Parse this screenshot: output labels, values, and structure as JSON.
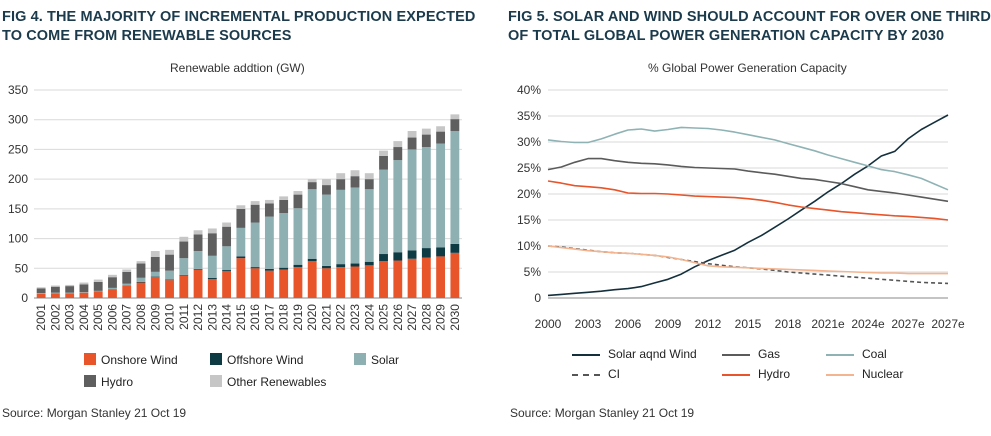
{
  "fig4": {
    "title_line1": "FIG 4. THE MAJORITY OF INCREMENTAL PRODUCTION EXPECTED",
    "title_line2": "TO COME FROM RENEWABLE SOURCES",
    "source": "Source: Morgan Stanley 21 Oct 19"
  },
  "fig5": {
    "title_line1": "FIG 5. SOLAR AND WIND SHOULD ACCOUNT FOR OVER ONE THIRD",
    "title_line2": "OF TOTAL GLOBAL POWER GENERATION CAPACITY BY 2030",
    "source": "Source: Morgan Stanley 21 Oct 19"
  },
  "chart_data": [
    {
      "type": "bar",
      "stacked": true,
      "title": "",
      "subtitle": "Renewable addtion (GW)",
      "xlabel": "",
      "ylabel": "",
      "ylim": [
        0,
        350
      ],
      "yticks": [
        0,
        50,
        100,
        150,
        200,
        250,
        300,
        350
      ],
      "grid": true,
      "legend_position": "bottom",
      "categories": [
        "2001",
        "2002",
        "2003",
        "2004",
        "2005",
        "2006",
        "2007",
        "2008",
        "2009",
        "2010",
        "2011",
        "2012",
        "2013",
        "2014",
        "2015",
        "2016",
        "2017",
        "2018",
        "2019",
        "2020",
        "2021",
        "2022",
        "2023",
        "2024",
        "2025",
        "2026",
        "2027",
        "2028",
        "2029",
        "2030"
      ],
      "series": [
        {
          "name": "Onshore Wind",
          "color": "#e8552a",
          "values": [
            7,
            8,
            8,
            9,
            11,
            15,
            21,
            26,
            35,
            30,
            38,
            48,
            32,
            45,
            67,
            50,
            46,
            48,
            52,
            62,
            50,
            52,
            53,
            55,
            62,
            63,
            66,
            68,
            70,
            76
          ]
        },
        {
          "name": "Offshore Wind",
          "color": "#0e3a44",
          "values": [
            0,
            0,
            0,
            0,
            0,
            0,
            0,
            1,
            1,
            1,
            1,
            1,
            2,
            2,
            3,
            2,
            3,
            3,
            4,
            4,
            4,
            5,
            5,
            6,
            12,
            14,
            14,
            16,
            15,
            15
          ]
        },
        {
          "name": "Solar",
          "color": "#8fb0b3",
          "values": [
            1,
            1,
            1,
            1,
            1,
            2,
            3,
            7,
            8,
            15,
            28,
            30,
            37,
            40,
            48,
            75,
            88,
            92,
            95,
            117,
            120,
            125,
            128,
            122,
            142,
            155,
            170,
            170,
            175,
            190
          ]
        },
        {
          "name": "Hydro",
          "color": "#5f5f5f",
          "values": [
            8,
            10,
            11,
            13,
            15,
            18,
            20,
            24,
            25,
            27,
            28,
            28,
            38,
            33,
            32,
            30,
            22,
            22,
            23,
            12,
            16,
            18,
            19,
            17,
            23,
            22,
            20,
            21,
            20,
            20
          ]
        },
        {
          "name": "Other Renewables",
          "color": "#c6c6c6",
          "values": [
            2,
            2,
            2,
            3,
            4,
            4,
            4,
            4,
            10,
            8,
            8,
            7,
            8,
            7,
            6,
            6,
            6,
            6,
            6,
            5,
            10,
            10,
            10,
            10,
            9,
            10,
            11,
            10,
            9,
            8
          ]
        }
      ]
    },
    {
      "type": "line",
      "title": "",
      "subtitle": "% Global Power Generation Capacity",
      "xlabel": "",
      "ylabel": "",
      "ylim": [
        0,
        40
      ],
      "yticks": [
        "0",
        "5%",
        "10%",
        "15%",
        "20%",
        "25%",
        "30%",
        "35%",
        "40%"
      ],
      "grid": true,
      "legend_position": "bottom",
      "xlim": [
        2000,
        2030
      ],
      "xticks": [
        "2000",
        "2003",
        "2006",
        "2009",
        "2012",
        "2015",
        "2018",
        "2021e",
        "2024e",
        "2027e",
        "2027e"
      ],
      "x": [
        2000,
        2001,
        2002,
        2003,
        2004,
        2005,
        2006,
        2007,
        2008,
        2009,
        2010,
        2011,
        2012,
        2013,
        2014,
        2015,
        2016,
        2017,
        2018,
        2019,
        2020,
        2021,
        2022,
        2023,
        2024,
        2025,
        2026,
        2027,
        2028,
        2029,
        2030
      ],
      "series": [
        {
          "name": "Solar aqnd Wind",
          "color": "#14303d",
          "dash": false,
          "values": [
            0.5,
            0.7,
            0.9,
            1.1,
            1.3,
            1.6,
            1.8,
            2.2,
            2.9,
            3.6,
            4.6,
            6.0,
            7.2,
            8.2,
            9.2,
            10.7,
            12.0,
            13.6,
            15.2,
            16.9,
            18.6,
            20.4,
            22.0,
            23.8,
            25.4,
            27.3,
            28.2,
            30.6,
            32.4,
            33.8,
            35.2
          ]
        },
        {
          "name": "Gas",
          "color": "#5b5b5b",
          "dash": false,
          "values": [
            24.7,
            25.2,
            26.1,
            26.8,
            26.8,
            26.4,
            26.1,
            25.9,
            25.8,
            25.6,
            25.3,
            25.1,
            25.0,
            24.9,
            24.8,
            24.4,
            24.1,
            23.8,
            23.4,
            23.0,
            22.8,
            22.4,
            22.0,
            21.4,
            20.8,
            20.5,
            20.2,
            19.8,
            19.4,
            19.0,
            18.6
          ]
        },
        {
          "name": "Coal",
          "color": "#8fb3b5",
          "dash": false,
          "values": [
            30.4,
            30.1,
            29.9,
            29.9,
            30.6,
            31.5,
            32.3,
            32.5,
            32.1,
            32.4,
            32.8,
            32.7,
            32.6,
            32.3,
            31.9,
            31.4,
            30.9,
            30.4,
            29.7,
            29.0,
            28.3,
            27.5,
            26.8,
            26.1,
            25.4,
            24.7,
            24.3,
            23.7,
            23.0,
            21.9,
            20.8
          ]
        },
        {
          "name": "CI",
          "color": "#555555",
          "dash": true,
          "values": [
            10.0,
            9.8,
            9.5,
            9.2,
            8.9,
            8.7,
            8.6,
            8.4,
            8.2,
            7.8,
            7.4,
            7.0,
            6.6,
            6.3,
            6.0,
            5.8,
            5.6,
            5.3,
            5.0,
            4.8,
            4.6,
            4.4,
            4.2,
            4.0,
            3.8,
            3.6,
            3.4,
            3.2,
            3.0,
            2.9,
            2.8
          ]
        },
        {
          "name": "Hydro",
          "color": "#e8552a",
          "dash": false,
          "values": [
            22.5,
            22.1,
            21.6,
            21.4,
            21.2,
            20.8,
            20.2,
            20.1,
            20.1,
            20.0,
            19.8,
            19.6,
            19.5,
            19.4,
            19.3,
            19.1,
            18.8,
            18.4,
            17.9,
            17.5,
            17.2,
            16.9,
            16.6,
            16.4,
            16.2,
            16.0,
            15.8,
            15.7,
            15.5,
            15.3,
            15.0
          ]
        },
        {
          "name": "Nuclear",
          "color": "#f3b48f",
          "dash": false,
          "values": [
            10.0,
            9.7,
            9.4,
            9.1,
            8.9,
            8.7,
            8.6,
            8.4,
            8.2,
            7.9,
            7.4,
            6.8,
            6.2,
            6.0,
            5.9,
            5.8,
            5.7,
            5.6,
            5.5,
            5.4,
            5.3,
            5.2,
            5.1,
            5.0,
            4.9,
            4.8,
            4.8,
            4.7,
            4.7,
            4.7,
            4.7
          ]
        }
      ]
    }
  ]
}
